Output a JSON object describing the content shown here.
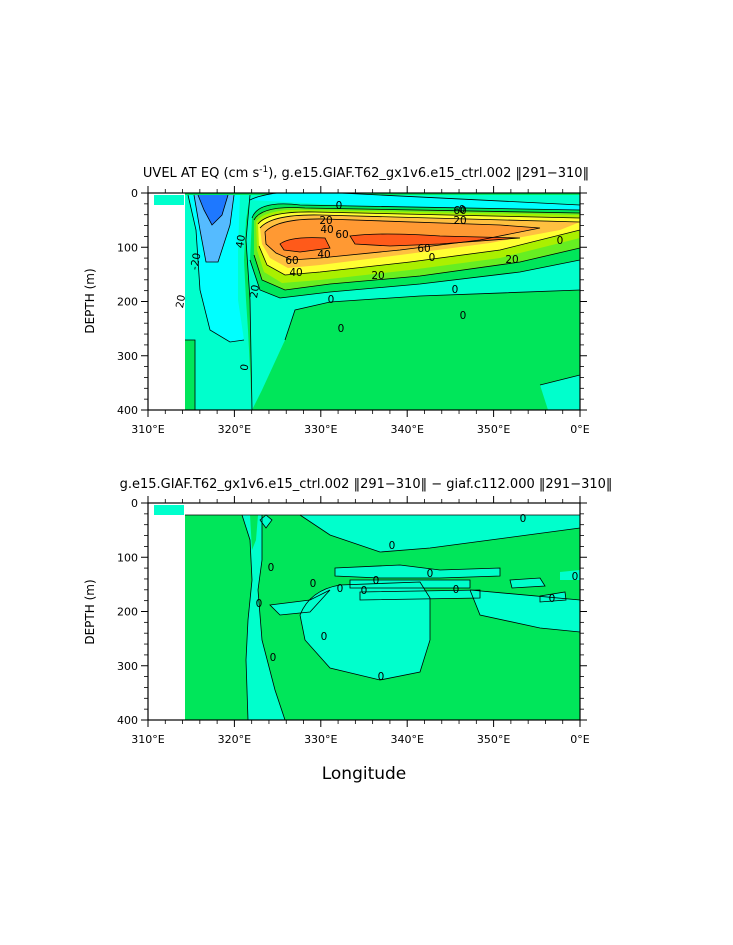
{
  "chart_data": [
    {
      "type": "heatmap",
      "title": "UVEL AT EQ (cm s",
      "title_sup": "-1",
      "title_rest": "), g.e15.GIAF.T62_gx1v6.e15_ctrl.002 ‖291−310‖",
      "ylabel": "DEPTH (m)",
      "xlim": [
        310,
        360
      ],
      "ylim": [
        400,
        0
      ],
      "x_ticks": [
        "310°E",
        "320°E",
        "330°E",
        "340°E",
        "350°E",
        "0°E"
      ],
      "y_ticks": [
        "0",
        "100",
        "200",
        "300",
        "400"
      ],
      "contour_labels": [
        "0",
        "20",
        "40",
        "60",
        "60",
        "60",
        "40",
        "20",
        "0",
        "0",
        "0",
        "0",
        "0",
        "20",
        "40",
        "60",
        "20",
        "40",
        "20",
        "0",
        "0",
        "-20",
        "0",
        "20"
      ],
      "colors": {
        "cyan": "#00ffff",
        "aqua": "#00ffcc",
        "green": "#00e65a",
        "lightgreen": "#66ee22",
        "yellowgreen": "#aaf000",
        "yellow": "#ffff33",
        "orange_light": "#ffc040",
        "orange": "#ff9933",
        "red_orange": "#ff5a1a",
        "blue": "#1e78ff",
        "lightblue": "#55bbff"
      }
    },
    {
      "type": "heatmap",
      "title": "g.e15.GIAF.T62_gx1v6.e15_ctrl.002 ‖291−310‖ − giaf.c112.000 ‖291−310‖",
      "ylabel": "DEPTH (m)",
      "xlabel": "Longitude",
      "xlim": [
        310,
        360
      ],
      "ylim": [
        400,
        0
      ],
      "x_ticks": [
        "310°E",
        "320°E",
        "330°E",
        "340°E",
        "350°E",
        "0°E"
      ],
      "y_ticks": [
        "0",
        "100",
        "200",
        "300",
        "400"
      ],
      "contour_labels": [
        "0",
        "0",
        "0",
        "0",
        "0",
        "0",
        "0",
        "0",
        "0",
        "0",
        "0",
        "0",
        "0",
        "0",
        "0"
      ],
      "colors": {
        "cyan": "#00ffff",
        "aqua": "#00ffcc",
        "green": "#00e65a"
      }
    }
  ]
}
